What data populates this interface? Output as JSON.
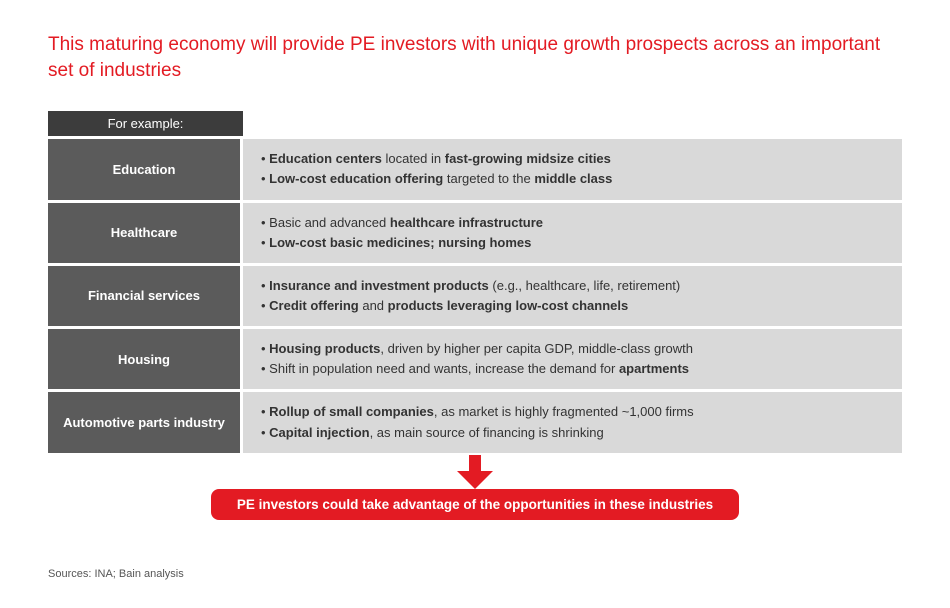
{
  "colors": {
    "accent_red": "#e31b23",
    "header_bg": "#3c3c3c",
    "label_bg": "#5b5b5b",
    "content_bg": "#d9d9d9",
    "text_dark": "#333333",
    "page_bg": "#ffffff"
  },
  "title": "This maturing economy will provide PE investors with unique growth prospects across an important set of industries",
  "table": {
    "header": "For example:",
    "rows": [
      {
        "label": "Education",
        "bullets": [
          "• <b>Education centers</b> located in <b>fast-growing midsize cities</b>",
          "• <b>Low-cost education offering</b> targeted to the <b>middle class</b>"
        ]
      },
      {
        "label": "Healthcare",
        "bullets": [
          "• Basic and advanced <b>healthcare infrastructure</b>",
          "• <b>Low-cost basic medicines; nursing homes</b>"
        ]
      },
      {
        "label": "Financial services",
        "bullets": [
          "• <b>Insurance and investment products</b> (e.g., healthcare, life, retirement)",
          "• <b>Credit offering</b> and <b>products leveraging low-cost channels</b>"
        ]
      },
      {
        "label": "Housing",
        "bullets": [
          "• <b>Housing products</b>, driven by higher per capita GDP, middle-class growth",
          "• Shift in population need and wants, increase the demand for <b>apartments</b>"
        ]
      },
      {
        "label": "Automotive parts industry",
        "bullets": [
          "• <b>Rollup of small companies</b>, as market is highly fragmented ~1,000 firms",
          "• <b>Capital injection</b>, as main source of financing is shrinking"
        ]
      }
    ]
  },
  "arrow": {
    "fill": "#e31b23",
    "width": 44,
    "height": 34
  },
  "callout": "PE investors could take advantage of the opportunities in these industries",
  "sources": "Sources: INA; Bain analysis"
}
